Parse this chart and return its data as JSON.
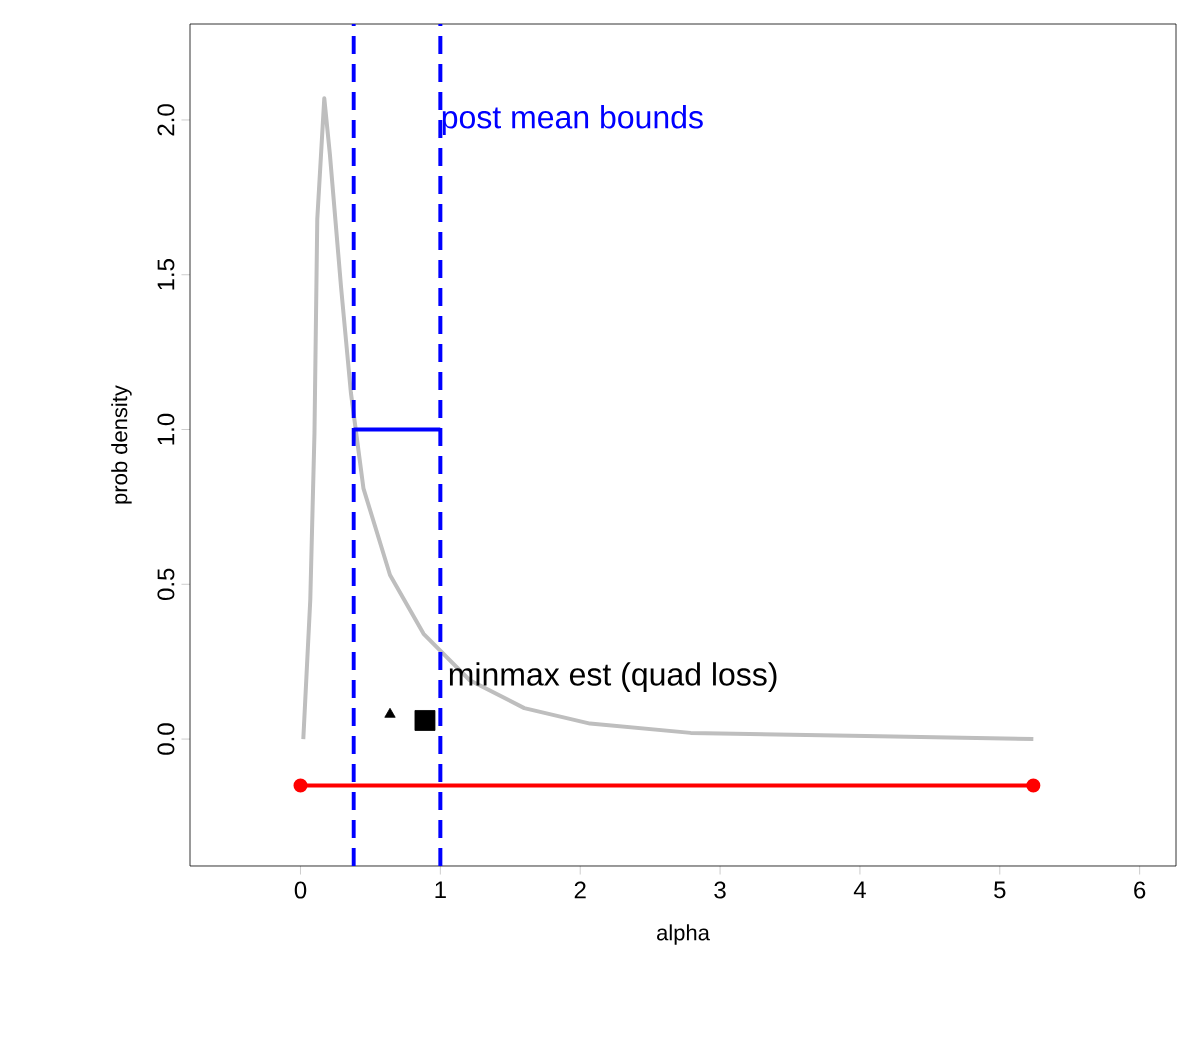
{
  "chart_data": {
    "type": "line",
    "xlabel": "alpha",
    "ylabel": "prob density",
    "xlim": [
      -0.79,
      6.26
    ],
    "ylim": [
      -0.41,
      2.31
    ],
    "xticks": [
      0,
      1,
      2,
      3,
      4,
      5,
      6
    ],
    "yticks": [
      {
        "value": 0,
        "label": "0.0"
      },
      0.5,
      {
        "value": 1,
        "label": "1.0"
      },
      1.5,
      {
        "value": 2,
        "label": "2.0"
      }
    ],
    "grid": false,
    "series": [
      {
        "type": "line",
        "color": "#bebebe",
        "marker": "none",
        "x": [
          0.02,
          0.07,
          0.1,
          0.12,
          0.17,
          0.21,
          0.29,
          0.36,
          0.45,
          0.64,
          0.88,
          1.21,
          1.6,
          2.07,
          2.79,
          4.04,
          5.24
        ],
        "values": [
          0.0,
          0.45,
          0.99,
          1.68,
          2.07,
          1.89,
          1.46,
          1.12,
          0.81,
          0.53,
          0.34,
          0.19,
          0.1,
          0.05,
          0.02,
          0.01,
          0.0
        ]
      },
      {
        "type": "line",
        "color": "#0000ff",
        "marker": "none",
        "x": [
          0.38,
          1.0
        ],
        "values": [
          1.0,
          1.0
        ]
      },
      {
        "type": "line",
        "color": "#ff0000",
        "marker": "circle",
        "x": [
          0,
          5.24
        ],
        "values": [
          -0.15,
          -0.15
        ]
      },
      {
        "type": "scatter",
        "color": "#000000",
        "marker": "triangle",
        "x": [
          0.64
        ],
        "values": [
          0.08
        ]
      },
      {
        "type": "scatter",
        "color": "#000000",
        "marker": "square",
        "x": [
          0.89
        ],
        "values": [
          0.06
        ]
      }
    ],
    "ref_lines": [
      {
        "axis": "x",
        "value": 0.38,
        "color": "#0000ff",
        "line_style": "dashed"
      },
      {
        "axis": "x",
        "value": 1.0,
        "color": "#0000ff",
        "line_style": "dashed"
      }
    ],
    "annotations": [
      {
        "text": "post mean bounds",
        "x": 1.0,
        "y": 2.0
      },
      {
        "text": "minmax est (quad loss)",
        "x": 1.05,
        "y": 0.2
      }
    ]
  }
}
